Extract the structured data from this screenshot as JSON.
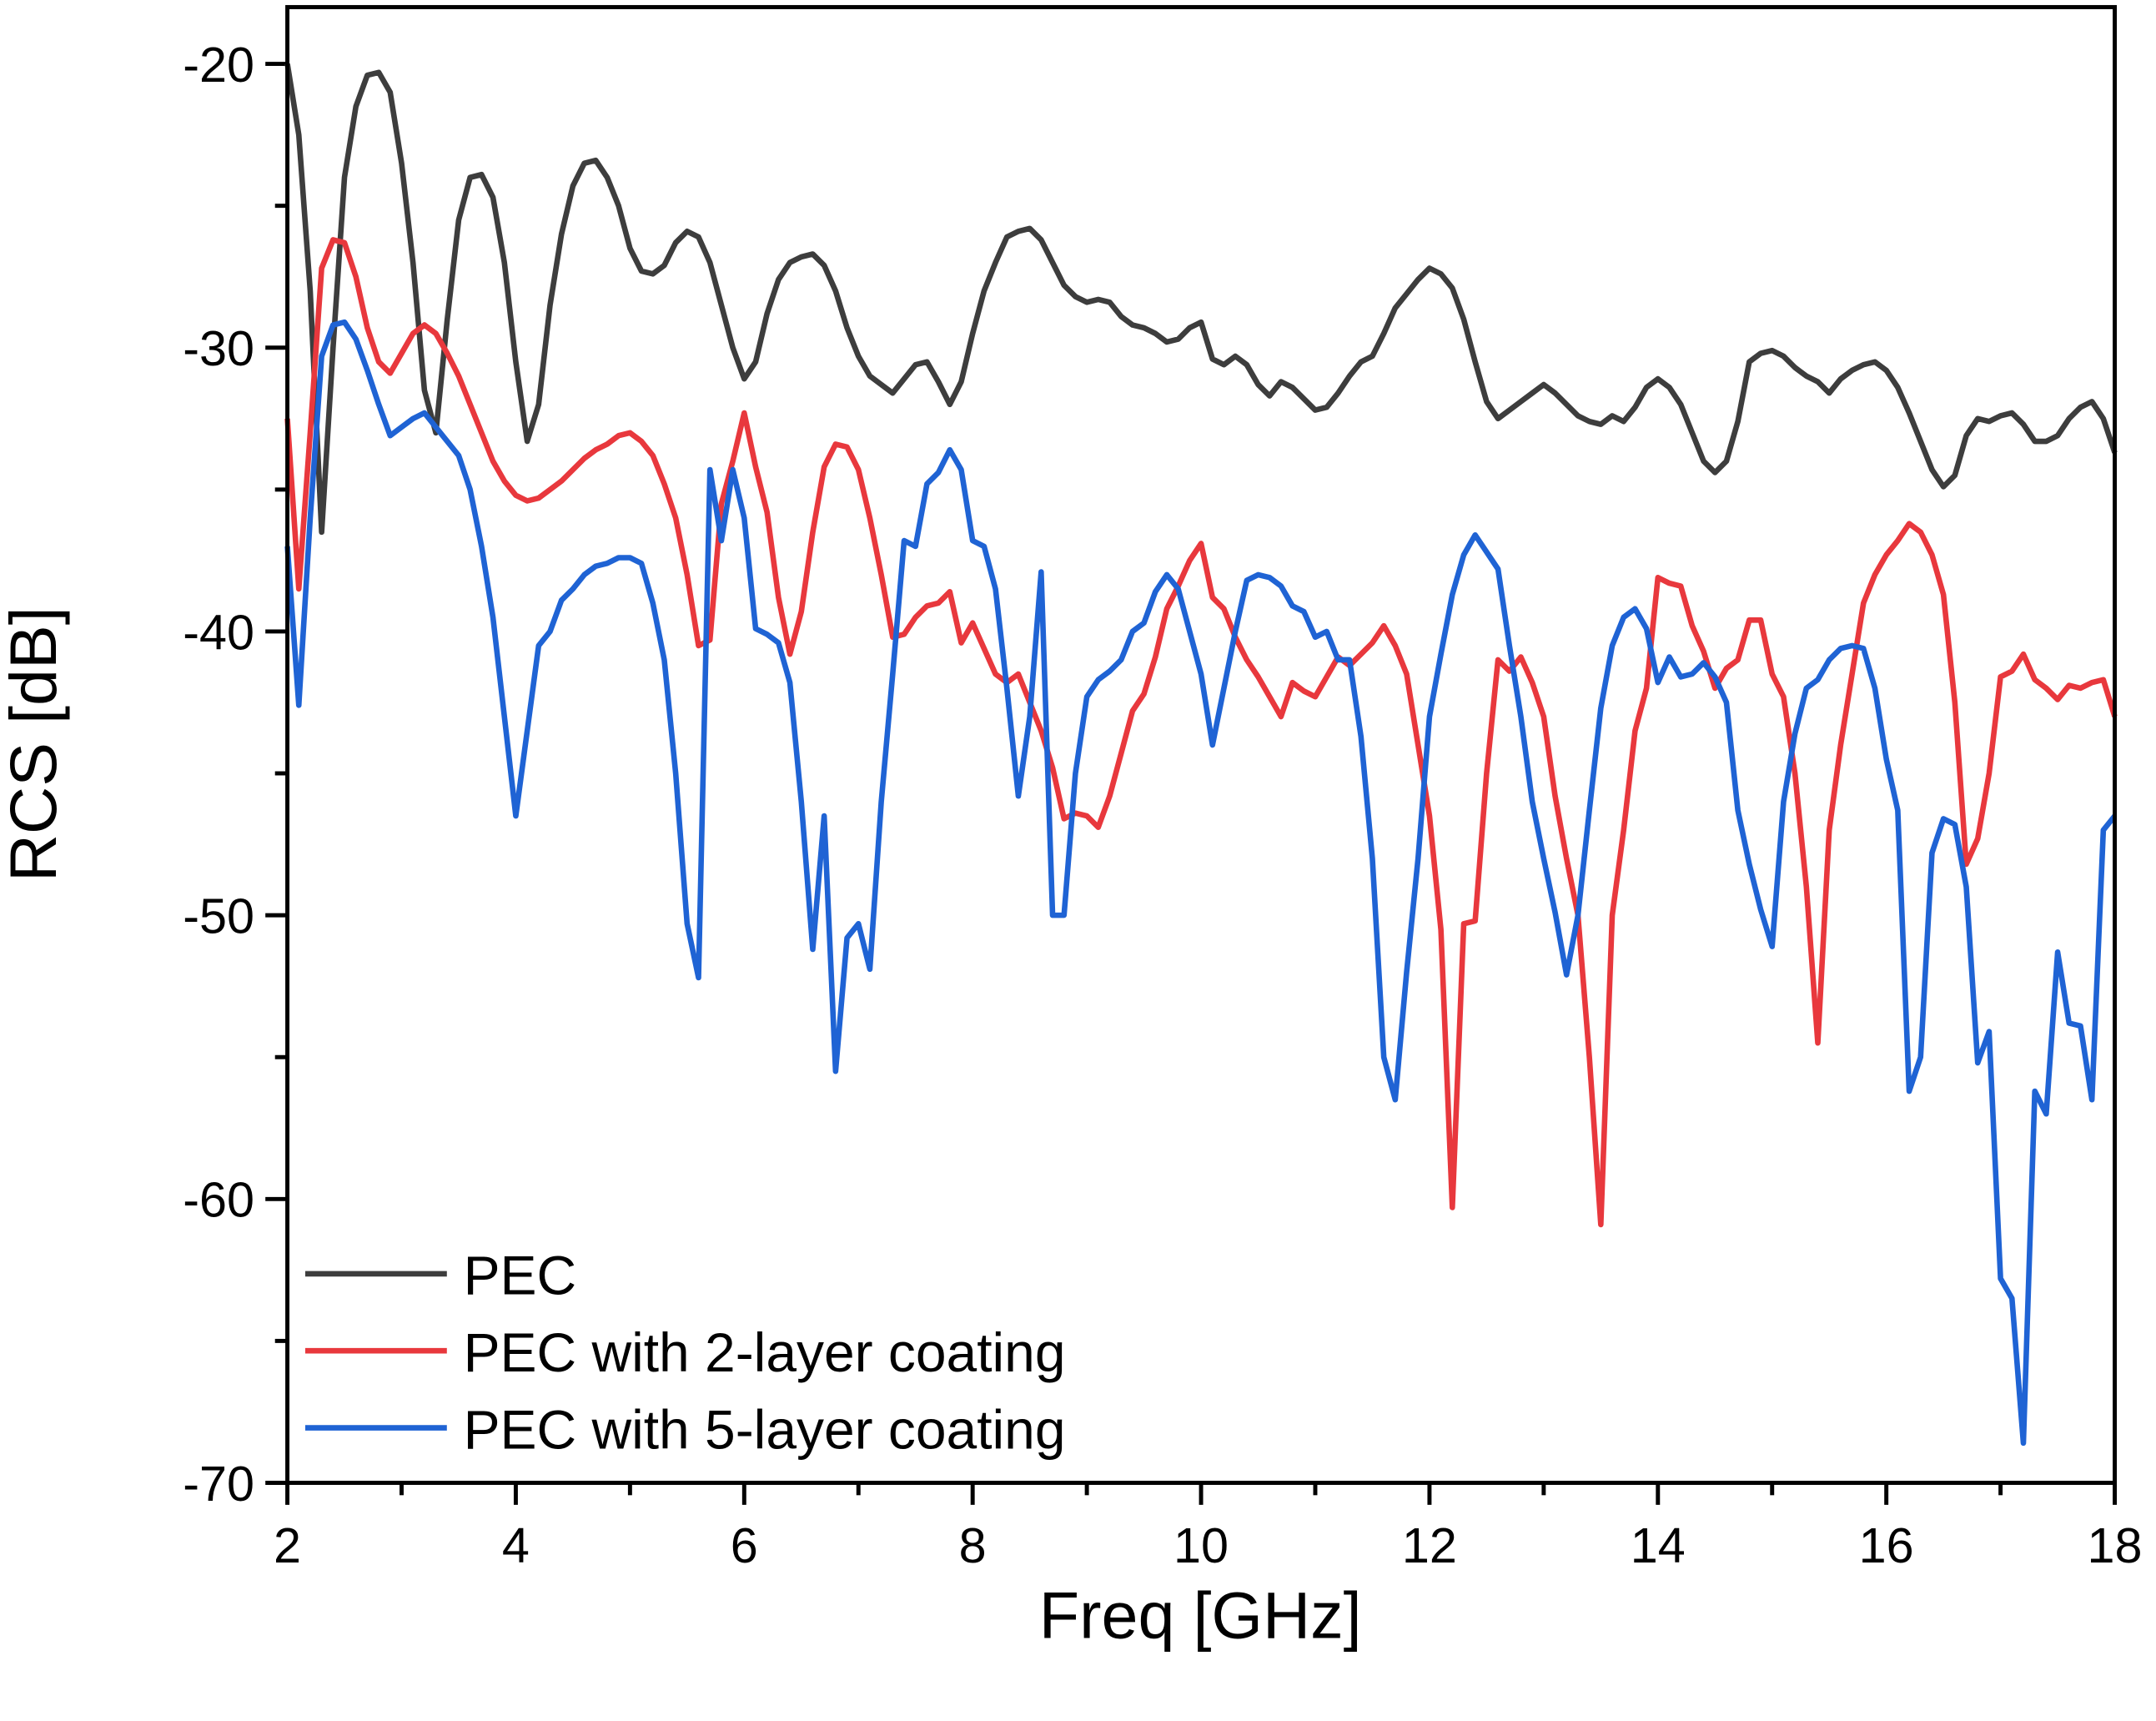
{
  "chart_data": {
    "type": "line",
    "xlabel": "Freq [GHz]",
    "ylabel": "RCS [dB]",
    "xlim": [
      2,
      18
    ],
    "ylim": [
      -70,
      -18
    ],
    "xticks": [
      2,
      4,
      6,
      8,
      10,
      12,
      14,
      16,
      18
    ],
    "yticks": [
      -70,
      -60,
      -50,
      -40,
      -30,
      -20
    ],
    "legend": "lower left",
    "x": [
      2,
      2.1,
      2.2,
      2.3,
      2.4,
      2.5,
      2.6,
      2.7,
      2.8,
      2.9,
      3,
      3.1,
      3.2,
      3.3,
      3.4,
      3.5,
      3.6,
      3.7,
      3.8,
      3.9,
      4,
      4.1,
      4.2,
      4.3,
      4.4,
      4.5,
      4.6,
      4.7,
      4.8,
      4.9,
      5,
      5.1,
      5.2,
      5.3,
      5.4,
      5.5,
      5.6,
      5.7,
      5.8,
      5.9,
      6,
      6.1,
      6.2,
      6.3,
      6.4,
      6.5,
      6.6,
      6.7,
      6.8,
      6.9,
      7,
      7.1,
      7.2,
      7.3,
      7.4,
      7.5,
      7.6,
      7.7,
      7.8,
      7.9,
      8,
      8.1,
      8.2,
      8.3,
      8.4,
      8.5,
      8.6,
      8.7,
      8.8,
      8.9,
      9,
      9.1,
      9.2,
      9.3,
      9.4,
      9.5,
      9.6,
      9.7,
      9.8,
      9.9,
      10,
      10.1,
      10.2,
      10.3,
      10.4,
      10.5,
      10.6,
      10.7,
      10.8,
      10.9,
      11,
      11.1,
      11.2,
      11.3,
      11.4,
      11.5,
      11.6,
      11.7,
      11.8,
      11.9,
      12,
      12.1,
      12.2,
      12.3,
      12.4,
      12.5,
      12.6,
      12.7,
      12.8,
      12.9,
      13,
      13.1,
      13.2,
      13.3,
      13.4,
      13.5,
      13.6,
      13.7,
      13.8,
      13.9,
      14,
      14.1,
      14.2,
      14.3,
      14.4,
      14.5,
      14.6,
      14.7,
      14.8,
      14.9,
      15,
      15.1,
      15.2,
      15.3,
      15.4,
      15.5,
      15.6,
      15.7,
      15.8,
      15.9,
      16,
      16.1,
      16.2,
      16.3,
      16.4,
      16.5,
      16.6,
      16.7,
      16.8,
      16.9,
      17,
      17.1,
      17.2,
      17.3,
      17.4,
      17.5,
      17.6,
      17.7,
      17.8,
      17.9,
      18
    ],
    "series": [
      {
        "name": "PEC",
        "color": "#3d3d3d",
        "values": [
          -20,
          -22.5,
          -28,
          -36.5,
          -30,
          -24,
          -21.5,
          -20.4,
          -20.3,
          -21,
          -23.5,
          -27,
          -31.5,
          -33,
          -29,
          -25.5,
          -24,
          -23.9,
          -24.7,
          -27,
          -30.5,
          -33.3,
          -32,
          -28.5,
          -26,
          -24.3,
          -23.5,
          -23.4,
          -24,
          -25,
          -26.5,
          -27.3,
          -27.4,
          -27.1,
          -26.3,
          -25.9,
          -26.1,
          -27,
          -28.5,
          -30,
          -31.1,
          -30.5,
          -28.8,
          -27.6,
          -27,
          -26.8,
          -26.7,
          -27.1,
          -28,
          -29.3,
          -30.3,
          -31,
          -31.3,
          -31.6,
          -31.1,
          -30.6,
          -30.5,
          -31.2,
          -32,
          -31.2,
          -29.5,
          -28,
          -27,
          -26.1,
          -25.9,
          -25.8,
          -26.2,
          -27,
          -27.8,
          -28.2,
          -28.4,
          -28.3,
          -28.4,
          -28.9,
          -29.2,
          -29.3,
          -29.5,
          -29.8,
          -29.7,
          -29.3,
          -29.1,
          -30.4,
          -30.6,
          -30.3,
          -30.6,
          -31.3,
          -31.7,
          -31.2,
          -31.4,
          -31.8,
          -32.2,
          -32.1,
          -31.6,
          -31,
          -30.5,
          -30.3,
          -29.5,
          -28.6,
          -28.1,
          -27.6,
          -27.2,
          -27.4,
          -27.9,
          -29,
          -30.5,
          -31.9,
          -32.5,
          -32.2,
          -31.9,
          -31.6,
          -31.3,
          -31.6,
          -32,
          -32.4,
          -32.6,
          -32.7,
          -32.4,
          -32.6,
          -32.1,
          -31.4,
          -31.1,
          -31.4,
          -32,
          -33,
          -34,
          -34.4,
          -34,
          -32.6,
          -30.5,
          -30.2,
          -30.1,
          -30.3,
          -30.7,
          -31,
          -31.2,
          -31.6,
          -31.1,
          -30.8,
          -30.6,
          -30.5,
          -30.8,
          -31.4,
          -32.3,
          -33.3,
          -34.3,
          -34.9,
          -34.5,
          -33.1,
          -32.5,
          -32.6,
          -32.4,
          -32.3,
          -32.7,
          -33.3,
          -33.3,
          -33.1,
          -32.5,
          -32.1,
          -31.9,
          -32.5,
          -33.7
        ]
      },
      {
        "name": "PEC with 2-layer coating",
        "color": "#e8383d",
        "values": [
          -32.5,
          -38.5,
          -33,
          -27.2,
          -26.2,
          -26.3,
          -27.5,
          -29.3,
          -30.5,
          -30.9,
          -30.2,
          -29.5,
          -29.2,
          -29.5,
          -30.2,
          -31,
          -32,
          -33,
          -34,
          -34.7,
          -35.2,
          -35.4,
          -35.3,
          -35,
          -34.7,
          -34.3,
          -33.9,
          -33.6,
          -33.4,
          -33.1,
          -33,
          -33.3,
          -33.8,
          -34.8,
          -36,
          -38,
          -40.5,
          -40.3,
          -35.5,
          -34,
          -32.3,
          -34.2,
          -35.8,
          -38.8,
          -40.8,
          -39.3,
          -36.5,
          -34.2,
          -33.4,
          -33.5,
          -34.3,
          -36,
          -38,
          -40.2,
          -40.1,
          -39.5,
          -39.1,
          -39,
          -38.6,
          -40.4,
          -39.7,
          -40.6,
          -41.5,
          -41.8,
          -41.5,
          -42.5,
          -43.5,
          -44.8,
          -46.6,
          -46.4,
          -46.5,
          -46.9,
          -45.8,
          -44.3,
          -42.8,
          -42.2,
          -40.9,
          -39.2,
          -38.4,
          -37.5,
          -36.9,
          -38.8,
          -39.2,
          -40.2,
          -41,
          -41.6,
          -42.3,
          -43,
          -41.8,
          -42.1,
          -42.3,
          -41.6,
          -40.9,
          -41.2,
          -40.8,
          -40.4,
          -39.8,
          -40.5,
          -41.5,
          -44,
          -46.5,
          -50.5,
          -60.3,
          -50.3,
          -50.2,
          -45,
          -41,
          -41.4,
          -40.9,
          -41.8,
          -43,
          -45.8,
          -48,
          -50,
          -55,
          -60.9,
          -50,
          -47,
          -43.5,
          -42,
          -38.1,
          -38.3,
          -38.4,
          -39.8,
          -40.7,
          -42,
          -41.3,
          -41,
          -39.6,
          -39.6,
          -41.5,
          -42.3,
          -45,
          -49,
          -54.5,
          -47,
          -44,
          -41.5,
          -39,
          -38,
          -37.3,
          -36.8,
          -36.2,
          -36.5,
          -37.3,
          -38.7,
          -42.5,
          -48.2,
          -47.3,
          -45,
          -41.6,
          -41.4,
          -40.8,
          -41.7,
          -42,
          -42.4,
          -41.9,
          -42,
          -41.8,
          -41.7,
          -43
        ]
      },
      {
        "name": "PEC with 5-layer coating",
        "color": "#1f63d4",
        "values": [
          -37,
          -42.6,
          -36,
          -30.3,
          -29.2,
          -29.1,
          -29.7,
          -30.8,
          -32,
          -33.1,
          -32.8,
          -32.5,
          -32.3,
          -32.8,
          -33.3,
          -33.8,
          -35,
          -37,
          -39.5,
          -43,
          -46.5,
          -43.5,
          -40.5,
          -40,
          -38.9,
          -38.5,
          -38,
          -37.7,
          -37.6,
          -37.4,
          -37.4,
          -37.6,
          -39,
          -41,
          -45,
          -50.3,
          -52.2,
          -34.3,
          -36.8,
          -34.3,
          -36,
          -39.9,
          -40.1,
          -40.4,
          -41.8,
          -46,
          -51.2,
          -46.5,
          -55.5,
          -50.8,
          -50.3,
          -51.9,
          -46,
          -41.5,
          -36.8,
          -37,
          -34.8,
          -34.4,
          -33.6,
          -34.3,
          -36.8,
          -37,
          -38.5,
          -42,
          -45.8,
          -43,
          -37.9,
          -50,
          -50,
          -45,
          -42.3,
          -41.7,
          -41.4,
          -41,
          -40,
          -39.7,
          -38.6,
          -38,
          -38.5,
          -40,
          -41.5,
          -44,
          -42,
          -40,
          -38.2,
          -38,
          -38.1,
          -38.4,
          -39.1,
          -39.3,
          -40.2,
          -40,
          -41,
          -41,
          -43.7,
          -48,
          -55,
          -56.5,
          -52,
          -48,
          -43,
          -40.8,
          -38.7,
          -37.3,
          -36.6,
          -37.2,
          -37.8,
          -40.5,
          -43,
          -46,
          -48,
          -49.9,
          -52.1,
          -50,
          -46.3,
          -42.7,
          -40.5,
          -39.5,
          -39.2,
          -39.9,
          -41.8,
          -40.9,
          -41.6,
          -41.5,
          -41.1,
          -41.6,
          -42.5,
          -46.3,
          -48.2,
          -49.8,
          -51.1,
          -46,
          -43.6,
          -42,
          -41.7,
          -41,
          -40.6,
          -40.5,
          -40.6,
          -42,
          -44.5,
          -46.3,
          -56.2,
          -55,
          -47.8,
          -46.6,
          -46.8,
          -49,
          -55.2,
          -54.1,
          -62.8,
          -63.5,
          -68.6,
          -56.2,
          -57,
          -51.3,
          -53.8,
          -53.9,
          -56.5,
          -47,
          -46.5
        ]
      }
    ]
  }
}
